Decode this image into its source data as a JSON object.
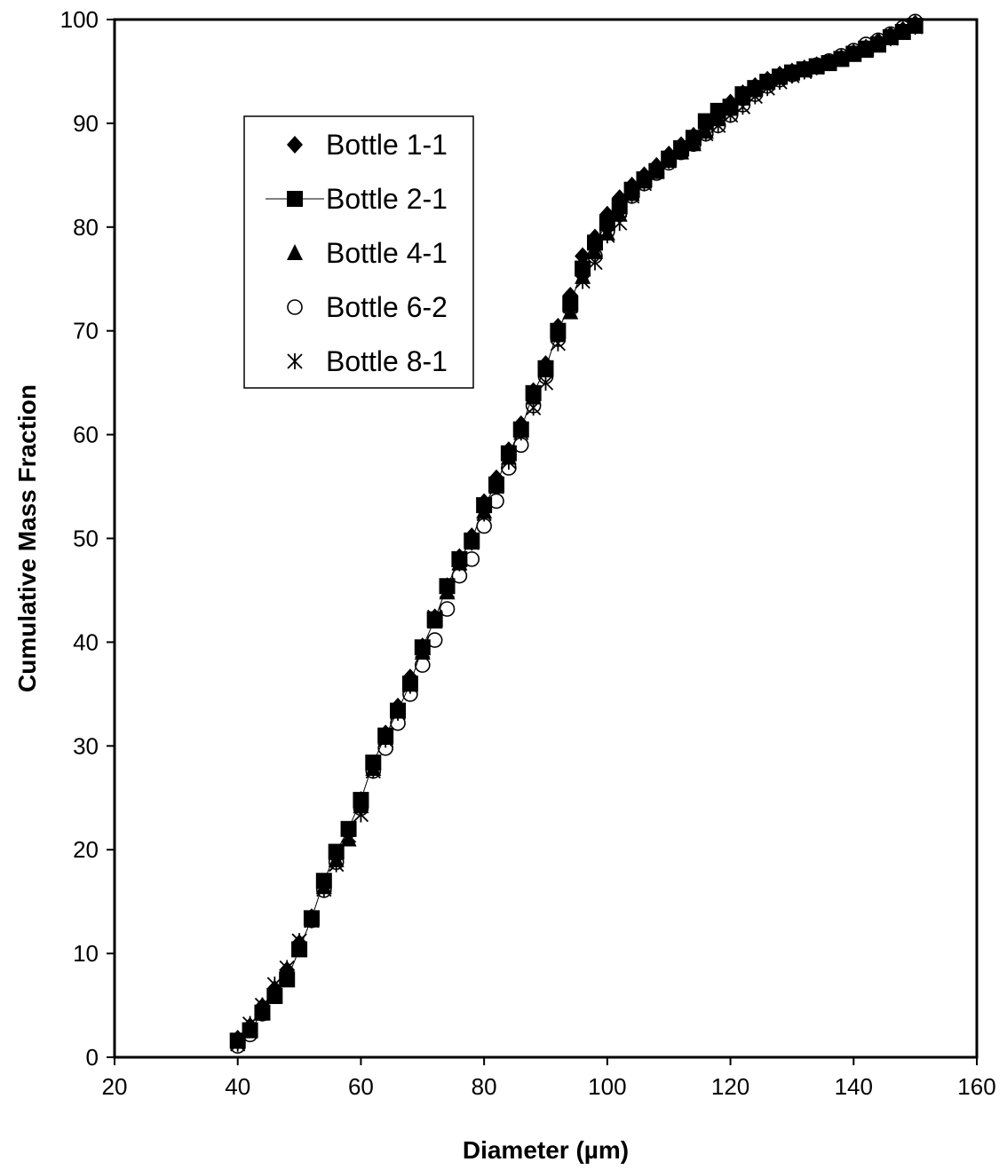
{
  "chart_data": {
    "type": "scatter",
    "title": "",
    "xlabel": "Diameter (µm)",
    "ylabel": "Cumulative Mass Fraction",
    "xlim": [
      20,
      160
    ],
    "ylim": [
      0,
      100
    ],
    "x_ticks": [
      20,
      40,
      60,
      80,
      100,
      120,
      140,
      160
    ],
    "y_ticks": [
      0,
      10,
      20,
      30,
      40,
      50,
      60,
      70,
      80,
      90,
      100
    ],
    "grid": false,
    "legend_position": "top-left",
    "x": [
      40,
      42,
      44,
      46,
      48,
      50,
      52,
      54,
      56,
      58,
      60,
      62,
      64,
      66,
      68,
      70,
      72,
      74,
      76,
      78,
      80,
      82,
      84,
      86,
      88,
      90,
      92,
      94,
      96,
      98,
      100,
      102,
      104,
      106,
      108,
      110,
      112,
      114,
      116,
      118,
      120,
      122,
      124,
      126,
      128,
      130,
      132,
      134,
      136,
      138,
      140,
      142,
      144,
      146,
      148,
      150
    ],
    "series": [
      {
        "name": "Bottle 1-1",
        "marker": "diamond",
        "line": false,
        "values": [
          1.8,
          3.0,
          4.9,
          6.6,
          8.4,
          11.0,
          13.5,
          16.8,
          19.4,
          21.8,
          24.8,
          28.2,
          31.2,
          33.8,
          36.6,
          39.6,
          42.4,
          45.4,
          48.2,
          50.2,
          53.5,
          55.8,
          58.5,
          61.0,
          64.2,
          66.8,
          70.4,
          73.4,
          77.2,
          79.0,
          81.2,
          82.8,
          84.0,
          85.0,
          85.9,
          87.0,
          87.9,
          88.8,
          89.9,
          91.0,
          92.0,
          92.9,
          93.6,
          94.2,
          94.7,
          95.0,
          95.3,
          95.6,
          95.9,
          96.3,
          96.8,
          97.3,
          97.9,
          98.5,
          99.0,
          99.6
        ]
      },
      {
        "name": "Bottle 2-1",
        "marker": "square",
        "line": true,
        "values": [
          1.6,
          2.6,
          4.3,
          5.9,
          7.5,
          10.4,
          13.4,
          17.0,
          19.8,
          22.0,
          24.8,
          28.4,
          31.0,
          33.4,
          36.0,
          39.5,
          42.2,
          45.4,
          48.0,
          49.8,
          53.2,
          55.2,
          58.2,
          60.5,
          64.0,
          66.4,
          70.0,
          72.6,
          76.0,
          78.5,
          80.4,
          82.0,
          83.6,
          84.6,
          85.4,
          86.6,
          87.6,
          88.6,
          90.2,
          91.2,
          91.6,
          92.8,
          93.4,
          94.0,
          94.5,
          94.9,
          95.2,
          95.5,
          95.8,
          96.2,
          96.7,
          97.2,
          97.6,
          98.3,
          98.8,
          99.4
        ]
      },
      {
        "name": "Bottle 4-1",
        "marker": "triangle",
        "line": false,
        "values": [
          1.5,
          2.6,
          4.4,
          6.0,
          7.8,
          10.4,
          13.2,
          16.4,
          19.0,
          21.0,
          24.2,
          27.8,
          30.8,
          33.8,
          36.2,
          39.0,
          42.0,
          44.8,
          47.6,
          49.6,
          52.6,
          55.0,
          57.8,
          60.4,
          63.6,
          66.2,
          69.6,
          71.8,
          75.2,
          77.6,
          79.4,
          81.2,
          83.2,
          84.4,
          85.4,
          86.4,
          87.2,
          88.0,
          89.2,
          90.4,
          91.4,
          92.4,
          93.2,
          93.9,
          94.4,
          94.8,
          95.1,
          95.4,
          95.8,
          96.2,
          96.6,
          97.0,
          97.5,
          98.2,
          98.8,
          99.5
        ]
      },
      {
        "name": "Bottle 6-2",
        "marker": "circle",
        "line": false,
        "values": [
          1.1,
          2.2,
          4.2,
          6.1,
          7.8,
          10.6,
          13.2,
          16.1,
          18.8,
          21.8,
          24.0,
          27.6,
          29.8,
          32.2,
          35.0,
          37.8,
          40.2,
          43.2,
          46.4,
          48.0,
          51.2,
          53.6,
          56.8,
          59.0,
          62.8,
          65.6,
          69.2,
          72.2,
          75.6,
          77.2,
          79.6,
          81.4,
          83.0,
          84.2,
          85.2,
          86.2,
          87.2,
          88.0,
          89.0,
          89.8,
          90.8,
          91.8,
          92.8,
          93.6,
          94.2,
          94.7,
          95.2,
          95.6,
          96.0,
          96.5,
          97.0,
          97.6,
          98.0,
          98.6,
          99.2,
          99.8
        ]
      },
      {
        "name": "Bottle 8-1",
        "marker": "asterisk",
        "line": false,
        "values": [
          1.3,
          3.2,
          5.0,
          7.0,
          8.6,
          11.2,
          13.2,
          16.2,
          18.6,
          21.4,
          23.4,
          27.6,
          30.6,
          33.2,
          35.8,
          39.2,
          42.4,
          45.0,
          47.6,
          49.6,
          52.4,
          55.0,
          57.4,
          60.2,
          62.6,
          65.0,
          68.8,
          72.4,
          74.8,
          76.6,
          79.2,
          80.4,
          83.0,
          84.2,
          85.4,
          86.4,
          87.4,
          88.2,
          89.0,
          89.8,
          90.8,
          91.6,
          92.6,
          93.4,
          94.0,
          94.6,
          95.0,
          95.4,
          95.8,
          96.2,
          96.7,
          97.2,
          97.7,
          98.2,
          98.8,
          99.3
        ]
      }
    ]
  }
}
